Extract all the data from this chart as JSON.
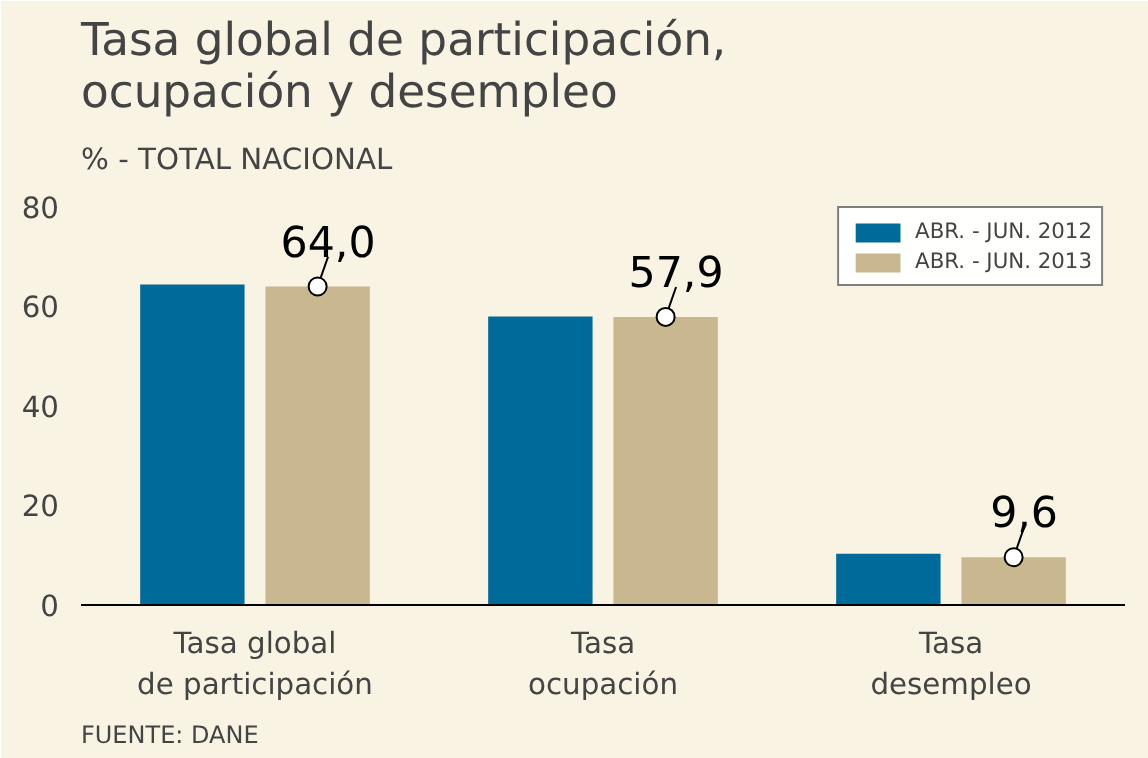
{
  "chart_data": {
    "type": "bar",
    "title": "Tasa global de participación,\nocupación y desempleo",
    "ylabel": "% - TOTAL NACIONAL",
    "categories": [
      "Tasa global\nde participación",
      "Tasa\nocupación",
      "Tasa\ndesempleo"
    ],
    "series": [
      {
        "name": "ABR. - JUN. 2012",
        "color": "#006a9a",
        "values": [
          64.4,
          58.0,
          10.3
        ]
      },
      {
        "name": "ABR. - JUN. 2013",
        "color": "#c9b88f",
        "values": [
          64.0,
          57.9,
          9.6
        ],
        "value_labels": [
          "64,0",
          "57,9",
          "9,6"
        ]
      }
    ],
    "ylim": [
      0,
      84
    ],
    "yticks": [
      0,
      20,
      40,
      60,
      80
    ],
    "grid": false,
    "legend": "top right",
    "annotations": [
      "FUENTE: DANE"
    ]
  }
}
